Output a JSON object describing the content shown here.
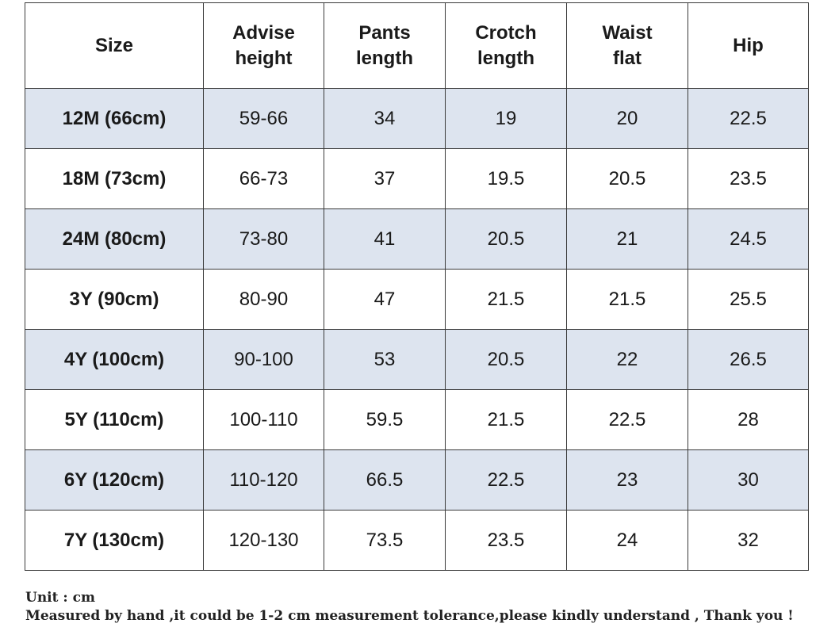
{
  "table": {
    "headers": [
      [
        "Size"
      ],
      [
        "Advise",
        "height"
      ],
      [
        "Pants",
        "length"
      ],
      [
        "Crotch",
        "length"
      ],
      [
        "Waist",
        "flat"
      ],
      [
        "Hip"
      ]
    ],
    "rows": [
      [
        "12M (66cm)",
        "59-66",
        "34",
        "19",
        "20",
        "22.5"
      ],
      [
        "18M (73cm)",
        "66-73",
        "37",
        "19.5",
        "20.5",
        "23.5"
      ],
      [
        "24M (80cm)",
        "73-80",
        "41",
        "20.5",
        "21",
        "24.5"
      ],
      [
        "3Y (90cm)",
        "80-90",
        "47",
        "21.5",
        "21.5",
        "25.5"
      ],
      [
        "4Y (100cm)",
        "90-100",
        "53",
        "20.5",
        "22",
        "26.5"
      ],
      [
        "5Y (110cm)",
        "100-110",
        "59.5",
        "21.5",
        "22.5",
        "28"
      ],
      [
        "6Y (120cm)",
        "110-120",
        "66.5",
        "22.5",
        "23",
        "30"
      ],
      [
        "7Y (130cm)",
        "120-130",
        "73.5",
        "23.5",
        "24",
        "32"
      ]
    ],
    "shaded_row_color": "#dde4ef",
    "plain_row_color": "#ffffff"
  },
  "notes": {
    "unit": "Unit : cm",
    "tolerance": "Measured by hand ,it could be 1-2 cm measurement tolerance,please kindly understand , Thank you !"
  }
}
